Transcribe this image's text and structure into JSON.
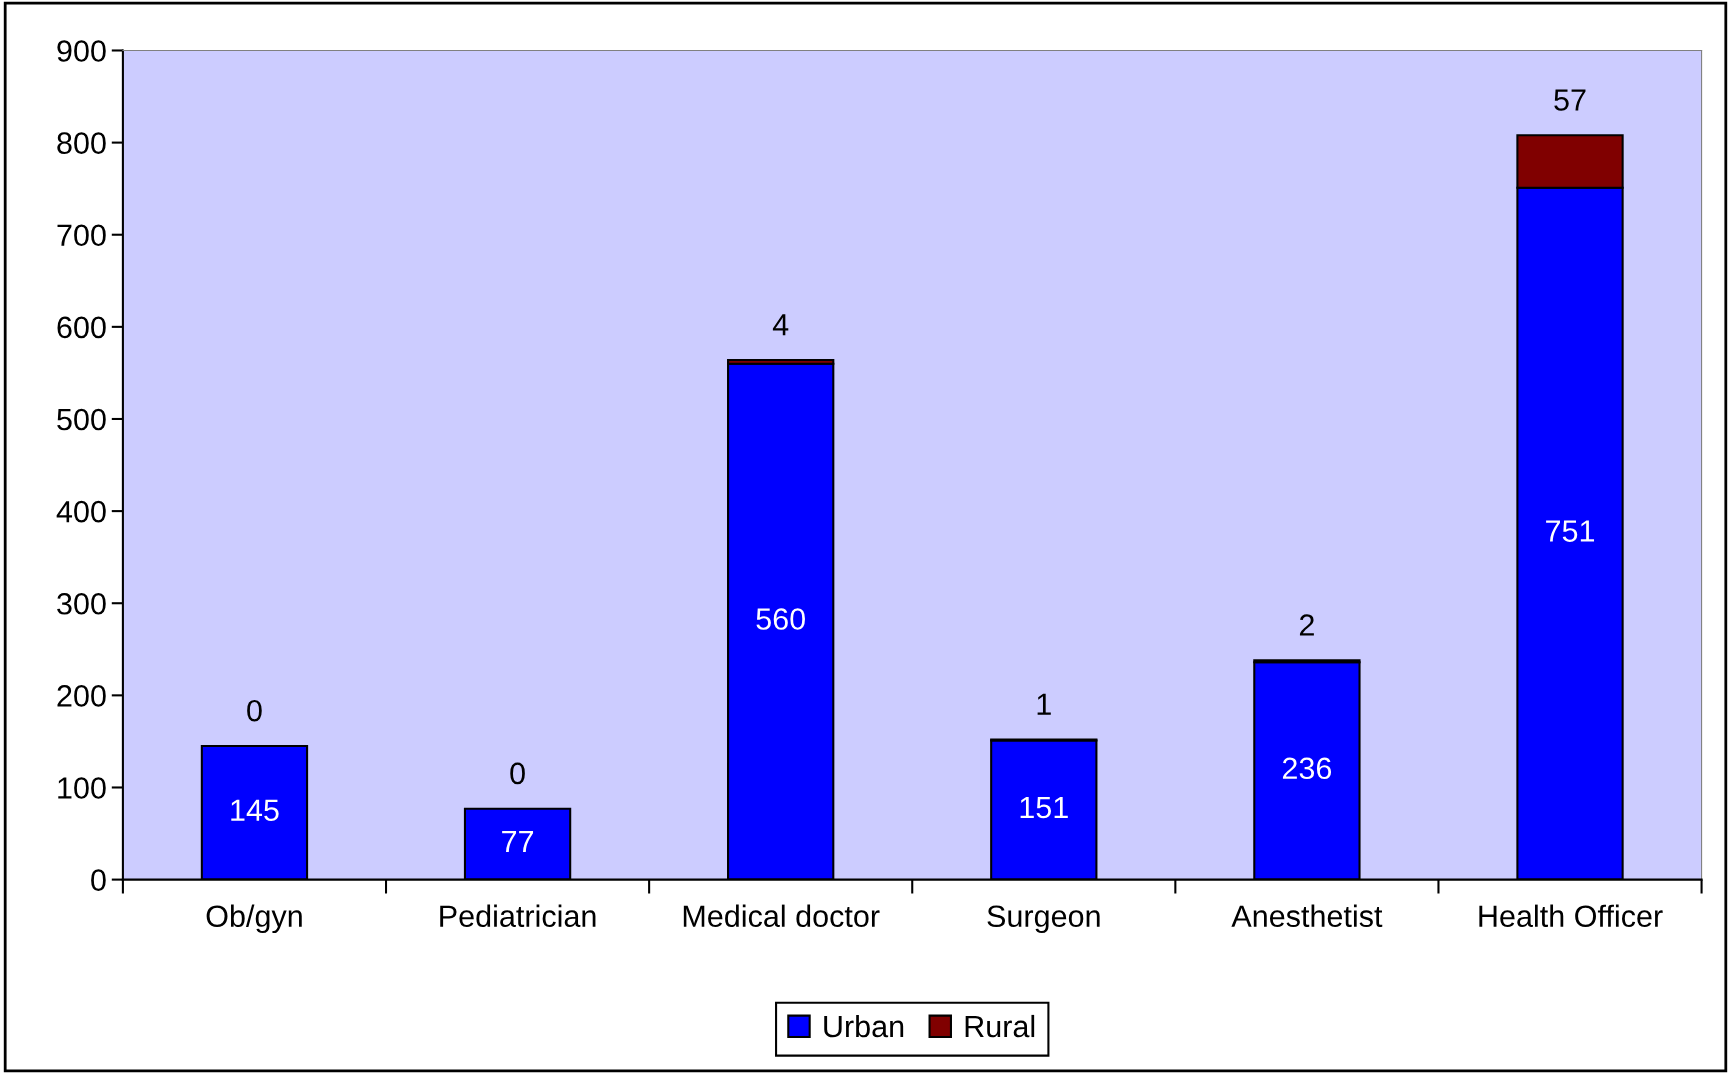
{
  "chart_data": {
    "type": "bar",
    "stacked": true,
    "categories": [
      "Ob/gyn",
      "Pediatrician",
      "Medical doctor",
      "Surgeon",
      "Anesthetist",
      "Health Officer"
    ],
    "series": [
      {
        "name": "Urban",
        "color": "#0000ff",
        "values": [
          145,
          77,
          560,
          151,
          236,
          751
        ]
      },
      {
        "name": "Rural",
        "color": "#800000",
        "values": [
          0,
          0,
          4,
          1,
          2,
          57
        ]
      }
    ],
    "ylim": [
      0,
      900
    ],
    "yticks": [
      0,
      100,
      200,
      300,
      400,
      500,
      600,
      700,
      800,
      900
    ],
    "data_labels": true,
    "legend": "bottom",
    "grid": false
  }
}
